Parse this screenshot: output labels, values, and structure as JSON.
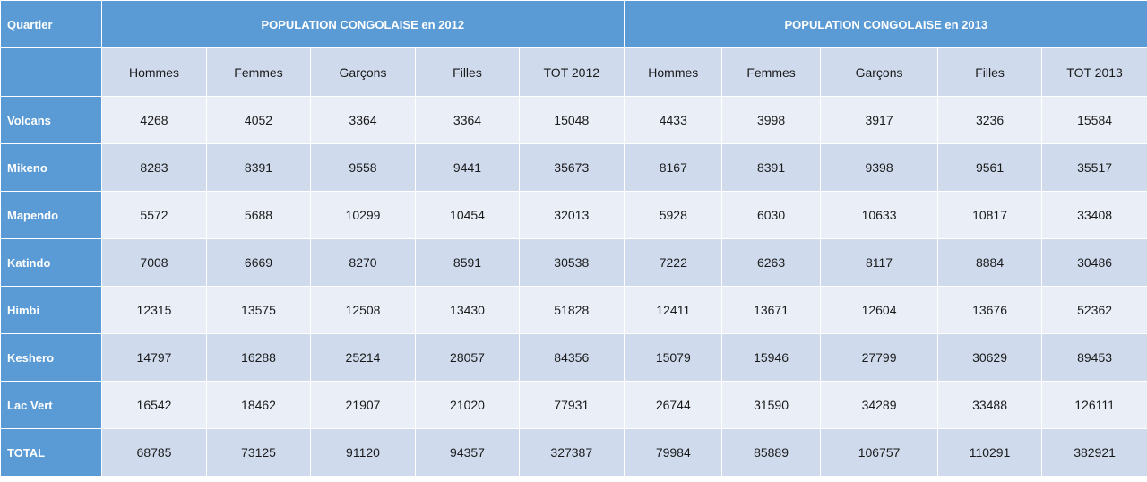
{
  "header": {
    "corner": "Quartier",
    "group_2012": "POPULATION CONGOLAISE en 2012",
    "group_2013": "POPULATION CONGOLAISE en 2013"
  },
  "columns_2012": [
    "Hommes",
    "Femmes",
    "Garçons",
    "Filles",
    "TOT 2012"
  ],
  "columns_2013": [
    "Hommes",
    "Femmes",
    "Garçons",
    "Filles",
    "TOT 2013"
  ],
  "rows": [
    {
      "name": "Volcans",
      "v2012": [
        "4268",
        "4052",
        "3364",
        "3364",
        "15048"
      ],
      "v2013": [
        "4433",
        "3998",
        "3917",
        "3236",
        "15584"
      ]
    },
    {
      "name": "Mikeno",
      "v2012": [
        "8283",
        "8391",
        "9558",
        "9441",
        "35673"
      ],
      "v2013": [
        "8167",
        "8391",
        "9398",
        "9561",
        "35517"
      ]
    },
    {
      "name": "Mapendo",
      "v2012": [
        "5572",
        "5688",
        "10299",
        "10454",
        "32013"
      ],
      "v2013": [
        "5928",
        "6030",
        "10633",
        "10817",
        "33408"
      ]
    },
    {
      "name": "Katindo",
      "v2012": [
        "7008",
        "6669",
        "8270",
        "8591",
        "30538"
      ],
      "v2013": [
        "7222",
        "6263",
        "8117",
        "8884",
        "30486"
      ]
    },
    {
      "name": "Himbi",
      "v2012": [
        "12315",
        "13575",
        "12508",
        "13430",
        "51828"
      ],
      "v2013": [
        "12411",
        "13671",
        "12604",
        "13676",
        "52362"
      ]
    },
    {
      "name": "Keshero",
      "v2012": [
        "14797",
        "16288",
        "25214",
        "28057",
        "84356"
      ],
      "v2013": [
        "15079",
        "15946",
        "27799",
        "30629",
        "89453"
      ]
    },
    {
      "name": "Lac Vert",
      "v2012": [
        "16542",
        "18462",
        "21907",
        "21020",
        "77931"
      ],
      "v2013": [
        "26744",
        "31590",
        "34289",
        "33488",
        "126111"
      ]
    },
    {
      "name": "TOTAL",
      "v2012": [
        "68785",
        "73125",
        "91120",
        "94357",
        "327387"
      ],
      "v2013": [
        "79984",
        "85889",
        "106757",
        "110291",
        "382921"
      ]
    }
  ]
}
